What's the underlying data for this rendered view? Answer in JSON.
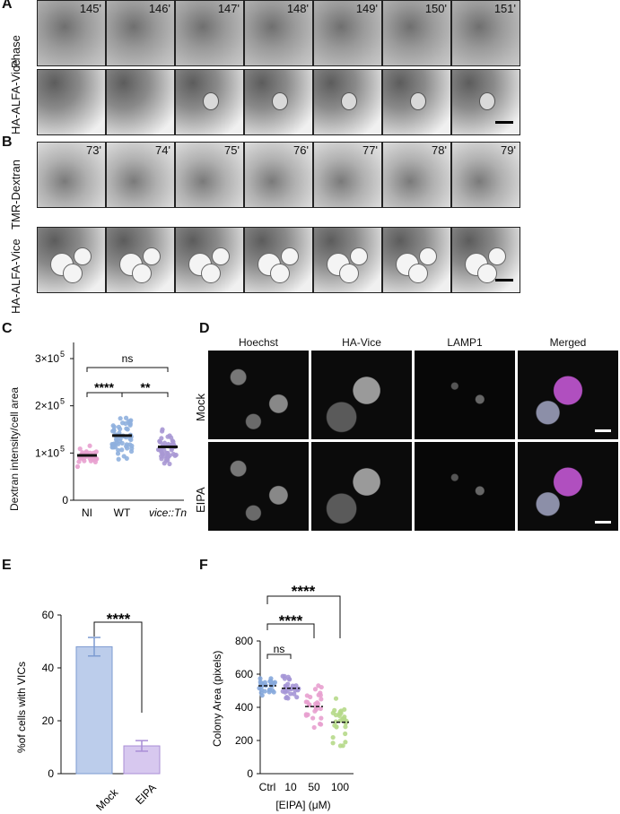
{
  "panel_letters": {
    "a": "A",
    "b": "B",
    "c": "C",
    "d": "D",
    "e": "E",
    "f": "F"
  },
  "panel_a": {
    "row1_label": "Phase",
    "row2_label": "HA-ALFA-Vice",
    "timepoints": [
      "145'",
      "146'",
      "147'",
      "148'",
      "149'",
      "150'",
      "151'"
    ]
  },
  "panel_b": {
    "row1_label": "TMR-Dextran",
    "row2_label": "HA-ALFA-Vice",
    "timepoints": [
      "73'",
      "74'",
      "75'",
      "76'",
      "77'",
      "78'",
      "79'"
    ]
  },
  "panel_c": {
    "ylabel": "Dextran intensity/cell area",
    "yticks": [
      "0",
      "1×10",
      "2×10",
      "3×10"
    ],
    "ytick_exp": "5",
    "categories": [
      "NI",
      "WT",
      "vice::Tn"
    ],
    "sig": {
      "ns": "ns",
      "ni_wt": "****",
      "wt_tn": "**"
    },
    "colors": {
      "NI": "#e8a0cf",
      "WT": "#8fb0de",
      "Tn": "#a898d4"
    },
    "chart_data": {
      "type": "scatter",
      "categories": [
        "NI",
        "WT",
        "vice::Tn"
      ],
      "means": [
        95000,
        137000,
        113000
      ],
      "ylim": [
        0,
        300000
      ]
    }
  },
  "panel_d": {
    "columns": [
      "Hoechst",
      "HA-Vice",
      "LAMP1",
      "Merged"
    ],
    "rows": [
      "Mock",
      "EIPA"
    ]
  },
  "panel_e": {
    "ylabel": "%of cells with VICs",
    "yticks": [
      "0",
      "20",
      "40",
      "60"
    ],
    "sig": "****",
    "colors": {
      "Mock": "#bccdeb",
      "EIPA": "#d7c8ef"
    },
    "chart_data": {
      "type": "bar",
      "categories": [
        "Mock",
        "EIPA"
      ],
      "values": [
        48,
        10.5
      ],
      "errors": [
        3.5,
        2
      ],
      "ylim": [
        0,
        60
      ]
    }
  },
  "panel_f": {
    "ylabel": "Colony Area (pixels)",
    "xlabel": "[EIPA] (μM)",
    "yticks": [
      "0",
      "200",
      "400",
      "600",
      "800"
    ],
    "categories": [
      "Ctrl",
      "10",
      "50",
      "100"
    ],
    "sig": {
      "ns": "ns",
      "c50": "****",
      "c100": "****"
    },
    "colors": {
      "Ctrl": "#86a8dc",
      "10": "#a596d6",
      "50": "#e8a0cf",
      "100": "#b6d98a"
    },
    "chart_data": {
      "type": "scatter",
      "categories": [
        "Ctrl",
        "10",
        "50",
        "100"
      ],
      "medians": [
        530,
        515,
        405,
        310
      ],
      "ylim": [
        0,
        800
      ]
    }
  }
}
